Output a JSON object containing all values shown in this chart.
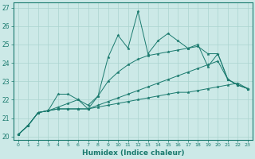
{
  "xlabel": "Humidex (Indice chaleur)",
  "xlim": [
    -0.5,
    23.5
  ],
  "ylim": [
    19.8,
    27.3
  ],
  "yticks": [
    20,
    21,
    22,
    23,
    24,
    25,
    26,
    27
  ],
  "xticks": [
    0,
    1,
    2,
    3,
    4,
    5,
    6,
    7,
    8,
    9,
    10,
    11,
    12,
    13,
    14,
    15,
    16,
    17,
    18,
    19,
    20,
    21,
    22,
    23
  ],
  "background_color": "#cce9e7",
  "grid_color": "#aad4d0",
  "line_color": "#1a7a6e",
  "line_jagged": [
    20.1,
    20.6,
    21.3,
    21.4,
    22.3,
    22.3,
    22.0,
    21.5,
    22.2,
    24.3,
    25.5,
    24.8,
    26.8,
    24.5,
    25.2,
    25.6,
    25.2,
    24.8,
    25.0,
    23.8,
    24.5,
    23.1,
    22.8,
    22.6
  ],
  "line_low": [
    20.1,
    20.6,
    21.3,
    21.4,
    21.5,
    21.5,
    21.5,
    21.5,
    21.6,
    21.7,
    21.8,
    21.9,
    22.0,
    22.1,
    22.2,
    22.3,
    22.4,
    22.4,
    22.5,
    22.6,
    22.7,
    22.8,
    22.9,
    22.6
  ],
  "line_mid": [
    20.1,
    20.6,
    21.3,
    21.4,
    21.5,
    21.5,
    21.5,
    21.5,
    21.7,
    21.9,
    22.1,
    22.3,
    22.5,
    22.7,
    22.9,
    23.1,
    23.3,
    23.5,
    23.7,
    23.9,
    24.1,
    23.1,
    22.8,
    22.6
  ],
  "line_upper": [
    20.1,
    20.6,
    21.3,
    21.4,
    21.6,
    21.8,
    22.0,
    21.7,
    22.2,
    23.0,
    23.5,
    23.9,
    24.2,
    24.4,
    24.5,
    24.6,
    24.7,
    24.8,
    24.9,
    24.5,
    24.5,
    23.1,
    22.8,
    22.6
  ]
}
